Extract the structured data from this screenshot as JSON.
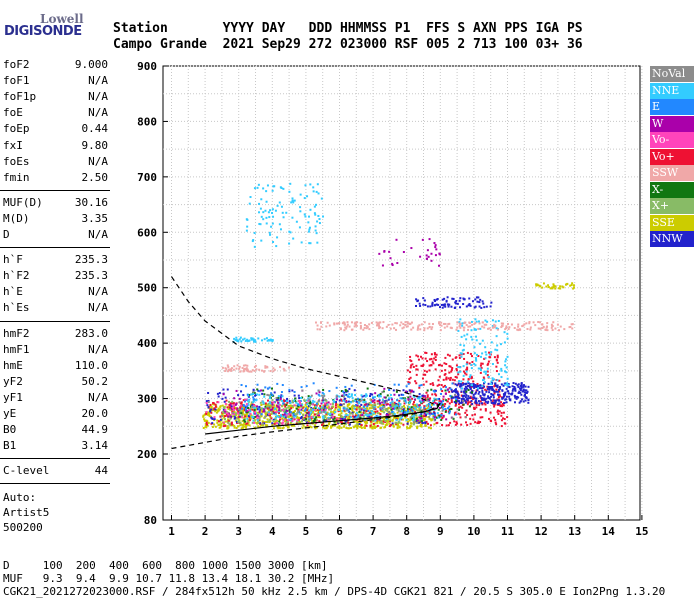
{
  "logo": {
    "line1": "Lowell",
    "line2": "DIGISONDE"
  },
  "header": {
    "row1": "Station       YYYY DAY   DDD HHMMSS P1  FFS S AXN PPS IGA PS",
    "row2": "Campo Grande  2021 Sep29 272 023000 RSF 005 2 713 100 03+ 36"
  },
  "params_group1": [
    {
      "name": "foF2",
      "value": "9.000"
    },
    {
      "name": "foF1",
      "value": "N/A"
    },
    {
      "name": "foF1p",
      "value": "N/A"
    },
    {
      "name": "foE",
      "value": "N/A"
    },
    {
      "name": "foEp",
      "value": "0.44"
    },
    {
      "name": "fxI",
      "value": "9.80"
    },
    {
      "name": "foEs",
      "value": "N/A"
    },
    {
      "name": "fmin",
      "value": "2.50"
    }
  ],
  "params_group2": [
    {
      "name": "MUF(D)",
      "value": "30.16"
    },
    {
      "name": "M(D)",
      "value": "3.35"
    },
    {
      "name": "D",
      "value": "N/A"
    }
  ],
  "params_group3": [
    {
      "name": "h`F",
      "value": "235.3"
    },
    {
      "name": "h`F2",
      "value": "235.3"
    },
    {
      "name": "h`E",
      "value": "N/A"
    },
    {
      "name": "h`Es",
      "value": "N/A"
    }
  ],
  "params_group4": [
    {
      "name": "hmF2",
      "value": "283.0"
    },
    {
      "name": "hmF1",
      "value": "N/A"
    },
    {
      "name": "hmE",
      "value": "110.0"
    },
    {
      "name": "yF2",
      "value": "50.2"
    },
    {
      "name": "yF1",
      "value": "N/A"
    },
    {
      "name": "yE",
      "value": "20.0"
    },
    {
      "name": "B0",
      "value": "44.9"
    },
    {
      "name": "B1",
      "value": "3.14"
    }
  ],
  "clevel": {
    "name": "C-level",
    "value": "44"
  },
  "auto": {
    "line1": "Auto:",
    "line2": "Artist5",
    "line3": "500200"
  },
  "legend": [
    {
      "label": "NoVal",
      "color": "#8c8c8c"
    },
    {
      "label": "NNE",
      "color": "#33ccff"
    },
    {
      "label": "E",
      "color": "#2288ff"
    },
    {
      "label": "W",
      "color": "#aa00aa"
    },
    {
      "label": "Vo-",
      "color": "#ff44bb"
    },
    {
      "label": "Vo+",
      "color": "#ee1133"
    },
    {
      "label": "SSW",
      "color": "#f0a8a8"
    },
    {
      "label": "X-",
      "color": "#117711"
    },
    {
      "label": "X+",
      "color": "#88bb66"
    },
    {
      "label": "SSE",
      "color": "#cccc00"
    },
    {
      "label": "NNW",
      "color": "#2222cc"
    }
  ],
  "footer": {
    "row1": "D     100  200  400  600  800 1000 1500 3000 [km]",
    "row2": "MUF   9.3  9.4  9.9 10.7 11.8 13.4 18.1 30.2 [MHz]",
    "row3": "CGK21_2021272023000.RSF / 284fx512h 50 kHz 2.5 km / DPS-4D CGK21 821 / 20.5 S 305.0 E Ion2Png 1.3.20"
  },
  "chart_data": {
    "type": "scatter",
    "x_ticks": [
      "1",
      "2",
      "3",
      "4",
      "5",
      "6",
      "7",
      "8",
      "9",
      "10",
      "11",
      "12",
      "13",
      "14",
      "15"
    ],
    "y_ticks": [
      "80",
      "200",
      "300",
      "400",
      "500",
      "600",
      "700",
      "800",
      "900"
    ],
    "xlim": [
      0.95,
      15.3
    ],
    "ylim_labels": [
      "80",
      "900"
    ],
    "grid": true,
    "legend_position": "right",
    "muf_curve": [
      [
        1.0,
        210
      ],
      [
        2.0,
        221
      ],
      [
        3.0,
        232
      ],
      [
        4.0,
        240
      ],
      [
        5.0,
        247
      ],
      [
        6.0,
        254
      ],
      [
        7.0,
        262
      ],
      [
        8.0,
        270
      ],
      [
        8.6,
        277
      ],
      [
        8.85,
        284
      ],
      [
        8.95,
        290
      ]
    ],
    "profile_curve": [
      [
        1.0,
        520
      ],
      [
        1.5,
        475
      ],
      [
        2.0,
        440
      ],
      [
        3.0,
        395
      ],
      [
        4.0,
        372
      ],
      [
        5.0,
        354
      ],
      [
        6.0,
        340
      ],
      [
        7.0,
        326
      ],
      [
        7.8,
        314
      ],
      [
        8.4,
        302
      ],
      [
        8.8,
        290
      ]
    ],
    "clusters": [
      {
        "series": "SSE",
        "xr": [
          1.9,
          8.8
        ],
        "yr": [
          248,
          292
        ],
        "n": 900
      },
      {
        "series": "Vo+",
        "xr": [
          2.0,
          11.0
        ],
        "yr": [
          252,
          300
        ],
        "n": 400
      },
      {
        "series": "Vo+",
        "xr": [
          8.0,
          10.8
        ],
        "yr": [
          290,
          385
        ],
        "n": 250
      },
      {
        "series": "NNW",
        "xr": [
          9.3,
          11.6
        ],
        "yr": [
          292,
          330
        ],
        "n": 300
      },
      {
        "series": "NNW",
        "xr": [
          2.0,
          9.0
        ],
        "yr": [
          255,
          320
        ],
        "n": 200
      },
      {
        "series": "X+",
        "xr": [
          2.5,
          8.5
        ],
        "yr": [
          255,
          300
        ],
        "n": 250
      },
      {
        "series": "X-",
        "xr": [
          3.0,
          10.0
        ],
        "yr": [
          260,
          320
        ],
        "n": 120
      },
      {
        "series": "NNE",
        "xr": [
          3.2,
          9.0
        ],
        "yr": [
          262,
          310
        ],
        "n": 250
      },
      {
        "series": "NNE",
        "xr": [
          9.5,
          11.0
        ],
        "yr": [
          320,
          445
        ],
        "n": 120
      },
      {
        "series": "NNE",
        "xr": [
          3.2,
          5.5
        ],
        "yr": [
          575,
          690
        ],
        "n": 110
      },
      {
        "series": "E",
        "xr": [
          3.0,
          9.5
        ],
        "yr": [
          270,
          330
        ],
        "n": 120
      },
      {
        "series": "SSW",
        "xr": [
          5.2,
          13.0
        ],
        "yr": [
          425,
          440
        ],
        "n": 220
      },
      {
        "series": "SSW",
        "xr": [
          2.5,
          4.5
        ],
        "yr": [
          350,
          362
        ],
        "n": 60
      },
      {
        "series": "W",
        "xr": [
          2.5,
          9.5
        ],
        "yr": [
          262,
          320
        ],
        "n": 100
      },
      {
        "series": "NNW",
        "xr": [
          8.2,
          10.5
        ],
        "yr": [
          465,
          485
        ],
        "n": 80
      },
      {
        "series": "SSE",
        "xr": [
          11.8,
          13.0
        ],
        "yr": [
          500,
          510
        ],
        "n": 35
      },
      {
        "series": "W",
        "xr": [
          7.0,
          9.0
        ],
        "yr": [
          540,
          590
        ],
        "n": 30
      },
      {
        "series": "NNE",
        "xr": [
          2.8,
          4.0
        ],
        "yr": [
          404,
          412
        ],
        "n": 40
      },
      {
        "series": "Vo-",
        "xr": [
          2.0,
          6.0
        ],
        "yr": [
          255,
          300
        ],
        "n": 60
      },
      {
        "series": "NoVal",
        "xr": [
          2.0,
          10.0
        ],
        "yr": [
          255,
          320
        ],
        "n": 60
      }
    ]
  }
}
